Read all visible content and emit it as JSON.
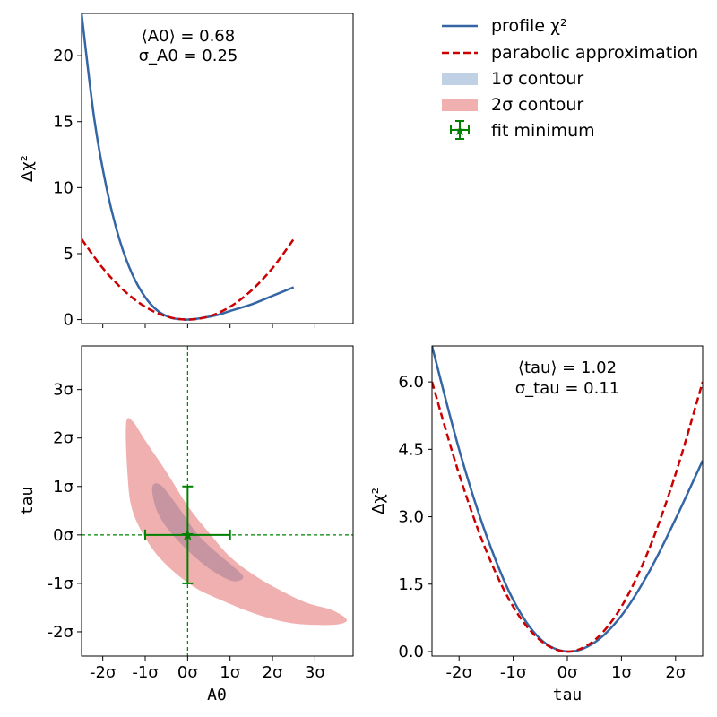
{
  "colors": {
    "profile": "#3465a4",
    "parabola": "#cc0000",
    "contour1": "#b0c4de",
    "contour2": "#f0b0b0",
    "contour_overlap": "#c090a0",
    "fit": "#008000"
  },
  "legend": {
    "profile": "profile χ²",
    "parabola": "parabolic approximation",
    "contour1": "1σ contour",
    "contour2": "2σ contour",
    "fit": "fit minimum"
  },
  "chart_data": [
    {
      "id": "A0-profile",
      "type": "line",
      "title": "",
      "annotation": {
        "mean_label": "⟨A0⟩ = 0.68",
        "sigma_label": "σ_A0 = 0.25",
        "mean": 0.68,
        "sigma": 0.25
      },
      "xlabel": "",
      "ylabel": "Δχ²",
      "xlim": [
        -2.5,
        3.9
      ],
      "ylim": [
        -0.3,
        23.2
      ],
      "yticks": [
        0,
        5,
        10,
        15,
        20
      ],
      "ytick_labels": [
        "0",
        "5",
        "10",
        "15",
        "20"
      ],
      "series": [
        {
          "name": "profile χ²",
          "x": [
            -2.5,
            -2.2,
            -1.9,
            -1.6,
            -1.3,
            -1.0,
            -0.7,
            -0.4,
            -0.1,
            0.0,
            0.3,
            0.7,
            1.0,
            1.5,
            2.0,
            2.5
          ],
          "y": [
            23.2,
            15.2,
            9.8,
            6.0,
            3.4,
            1.7,
            0.65,
            0.15,
            0.01,
            0.0,
            0.1,
            0.35,
            0.65,
            1.15,
            1.8,
            2.45
          ]
        },
        {
          "name": "parabolic approximation",
          "x": [
            -2.5,
            -2.0,
            -1.5,
            -1.0,
            -0.5,
            0.0,
            0.5,
            1.0,
            1.5,
            2.0,
            2.5
          ],
          "y": [
            6.1,
            3.9,
            2.2,
            0.97,
            0.24,
            0.0,
            0.24,
            0.97,
            2.2,
            3.9,
            6.1
          ]
        }
      ]
    },
    {
      "id": "tau-profile",
      "type": "line",
      "title": "",
      "annotation": {
        "mean_label": "⟨tau⟩ = 1.02",
        "sigma_label": "σ_tau = 0.11",
        "mean": 1.02,
        "sigma": 0.11
      },
      "xlabel": "tau",
      "ylabel": "Δχ²",
      "xlim": [
        -2.5,
        2.5
      ],
      "ylim": [
        -0.1,
        6.8
      ],
      "xticks": [
        -2,
        -1,
        0,
        1,
        2
      ],
      "xtick_labels": [
        "-2σ",
        "-1σ",
        "0σ",
        "1σ",
        "2σ"
      ],
      "yticks": [
        0.0,
        1.5,
        3.0,
        4.5,
        6.0
      ],
      "ytick_labels": [
        "0.0",
        "1.5",
        "3.0",
        "4.5",
        "6.0"
      ],
      "series": [
        {
          "name": "profile χ²",
          "x": [
            -2.5,
            -2.0,
            -1.5,
            -1.0,
            -0.5,
            0.0,
            0.5,
            1.0,
            1.5,
            2.0,
            2.5
          ],
          "y": [
            6.8,
            4.5,
            2.6,
            1.15,
            0.28,
            0.0,
            0.2,
            0.8,
            1.75,
            2.95,
            4.25
          ]
        },
        {
          "name": "parabolic approximation",
          "x": [
            -2.5,
            -2.0,
            -1.5,
            -1.0,
            -0.5,
            0.0,
            0.5,
            1.0,
            1.5,
            2.0,
            2.5
          ],
          "y": [
            6.0,
            3.95,
            2.25,
            1.0,
            0.25,
            0.0,
            0.25,
            1.0,
            2.25,
            3.95,
            6.0
          ]
        }
      ]
    },
    {
      "id": "A0-tau-contour",
      "type": "contour",
      "title": "",
      "xlabel": "A0",
      "ylabel": "tau",
      "xlim": [
        -2.5,
        3.9
      ],
      "ylim": [
        -2.5,
        3.9
      ],
      "xticks": [
        -2,
        -1,
        0,
        1,
        2,
        3
      ],
      "xtick_labels": [
        "-2σ",
        "-1σ",
        "0σ",
        "1σ",
        "2σ",
        "3σ"
      ],
      "yticks": [
        -2,
        -1,
        0,
        1,
        2,
        3
      ],
      "ytick_labels": [
        "-2σ",
        "-1σ",
        "0σ",
        "1σ",
        "2σ",
        "3σ"
      ],
      "contours": [
        {
          "name": "2σ contour",
          "points": [
            [
              -1.45,
              2.3
            ],
            [
              -1.3,
              2.35
            ],
            [
              -1.0,
              1.95
            ],
            [
              -0.5,
              1.3
            ],
            [
              0.0,
              0.6
            ],
            [
              0.5,
              0.05
            ],
            [
              1.0,
              -0.45
            ],
            [
              1.6,
              -0.85
            ],
            [
              2.2,
              -1.15
            ],
            [
              2.8,
              -1.4
            ],
            [
              3.4,
              -1.55
            ],
            [
              3.75,
              -1.75
            ],
            [
              3.5,
              -1.85
            ],
            [
              2.8,
              -1.85
            ],
            [
              2.2,
              -1.78
            ],
            [
              1.5,
              -1.6
            ],
            [
              0.8,
              -1.35
            ],
            [
              0.2,
              -1.1
            ],
            [
              -0.4,
              -0.7
            ],
            [
              -0.9,
              -0.2
            ],
            [
              -1.3,
              0.5
            ],
            [
              -1.42,
              1.3
            ]
          ]
        },
        {
          "name": "1σ contour",
          "points": [
            [
              -0.8,
              1.05
            ],
            [
              -0.6,
              1.0
            ],
            [
              -0.2,
              0.55
            ],
            [
              0.2,
              0.05
            ],
            [
              0.6,
              -0.3
            ],
            [
              1.2,
              -0.75
            ],
            [
              1.3,
              -0.9
            ],
            [
              1.05,
              -0.95
            ],
            [
              0.6,
              -0.75
            ],
            [
              0.1,
              -0.4
            ],
            [
              -0.4,
              0.05
            ],
            [
              -0.7,
              0.45
            ],
            [
              -0.83,
              0.85
            ]
          ]
        }
      ],
      "fit_minimum": {
        "x": 0.0,
        "y": 0.0,
        "xerr": 1.0,
        "yerr": 1.0
      }
    }
  ]
}
